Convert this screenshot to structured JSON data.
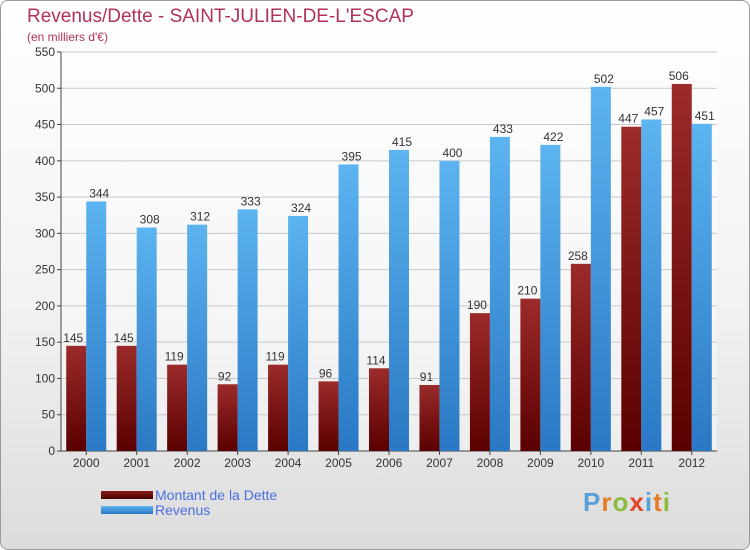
{
  "header": {
    "title": "Revenus/Dette - SAINT-JULIEN-DE-L'ESCAP",
    "subtitle": "(en milliers d'€)"
  },
  "colors": {
    "dette": "#8b1a1a",
    "revenus": "#3d9be0",
    "title": "#b2325a",
    "legend_text": "#4a6fe0"
  },
  "legend": {
    "items": [
      {
        "label": "Montant de la Dette",
        "color": "#7a0d0d"
      },
      {
        "label": "Revenus",
        "color": "#3d9be0"
      }
    ]
  },
  "logo": {
    "text": "Proxiti",
    "letter_colors": [
      "#5aa0d8",
      "#e57d2a",
      "#8dbb3c",
      "#e5452a",
      "#5aa0d8",
      "#e57d2a",
      "#8dbb3c"
    ]
  },
  "chart_data": {
    "type": "bar",
    "categories": [
      "2000",
      "2001",
      "2002",
      "2003",
      "2004",
      "2005",
      "2006",
      "2007",
      "2008",
      "2009",
      "2010",
      "2011",
      "2012"
    ],
    "series": [
      {
        "name": "Montant de la Dette",
        "values": [
          145,
          145,
          119,
          92,
          119,
          96,
          114,
          91,
          190,
          210,
          258,
          447,
          506
        ]
      },
      {
        "name": "Revenus",
        "values": [
          344,
          308,
          312,
          333,
          324,
          395,
          415,
          400,
          433,
          422,
          502,
          457,
          451
        ]
      }
    ],
    "yticks": [
      0,
      50,
      100,
      150,
      200,
      250,
      300,
      350,
      400,
      450,
      500,
      550
    ],
    "ylim": [
      0,
      550
    ],
    "grid": true,
    "legend_position": "bottom-left"
  }
}
